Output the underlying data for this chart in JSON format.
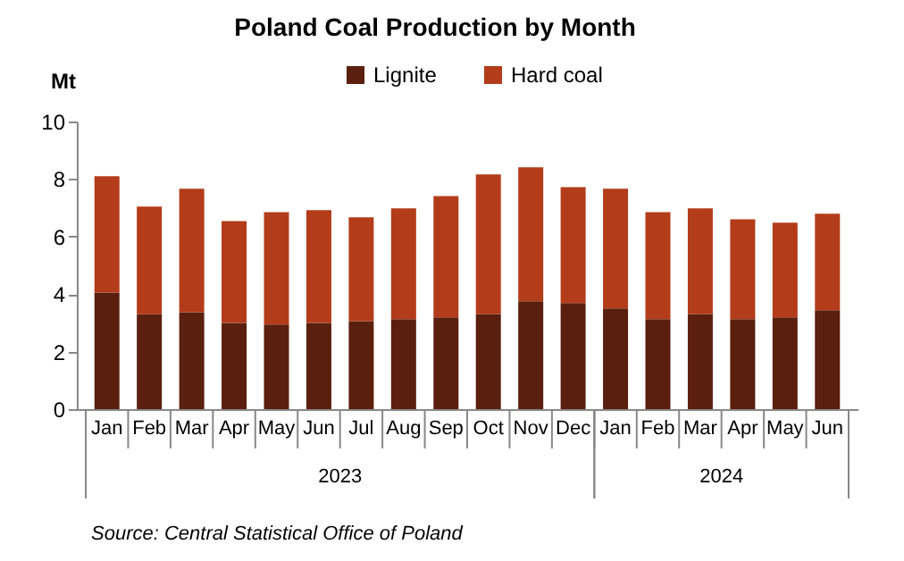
{
  "chart_data": {
    "type": "bar",
    "title": "Poland Coal Production by Month",
    "ylabel": "Mt",
    "categories": [
      "Jan",
      "Feb",
      "Mar",
      "Apr",
      "May",
      "Jun",
      "Jul",
      "Aug",
      "Sep",
      "Oct",
      "Nov",
      "Dec",
      "Jan",
      "Feb",
      "Mar",
      "Apr",
      "May",
      "Jun"
    ],
    "series": [
      {
        "name": "Lignite",
        "color": "#5a1f0e",
        "values": [
          4.05,
          3.3,
          3.37,
          3.0,
          2.94,
          3.0,
          3.06,
          3.13,
          3.19,
          3.31,
          3.75,
          3.69,
          3.5,
          3.13,
          3.31,
          3.13,
          3.19,
          3.44
        ]
      },
      {
        "name": "Hard coal",
        "color": "#b33c1a",
        "values": [
          4.05,
          3.74,
          4.29,
          3.54,
          3.91,
          3.92,
          3.61,
          3.85,
          4.22,
          4.85,
          4.66,
          4.03,
          4.16,
          3.72,
          3.67,
          3.47,
          3.29,
          3.35
        ]
      }
    ],
    "stacked": true,
    "ylim": [
      0,
      10
    ],
    "yticks": [
      0,
      2,
      4,
      6,
      8,
      10
    ],
    "grid": false,
    "legend": "top",
    "annotations": [
      "2023",
      "2024",
      "Source:  Central Statistical Office of Poland"
    ]
  }
}
